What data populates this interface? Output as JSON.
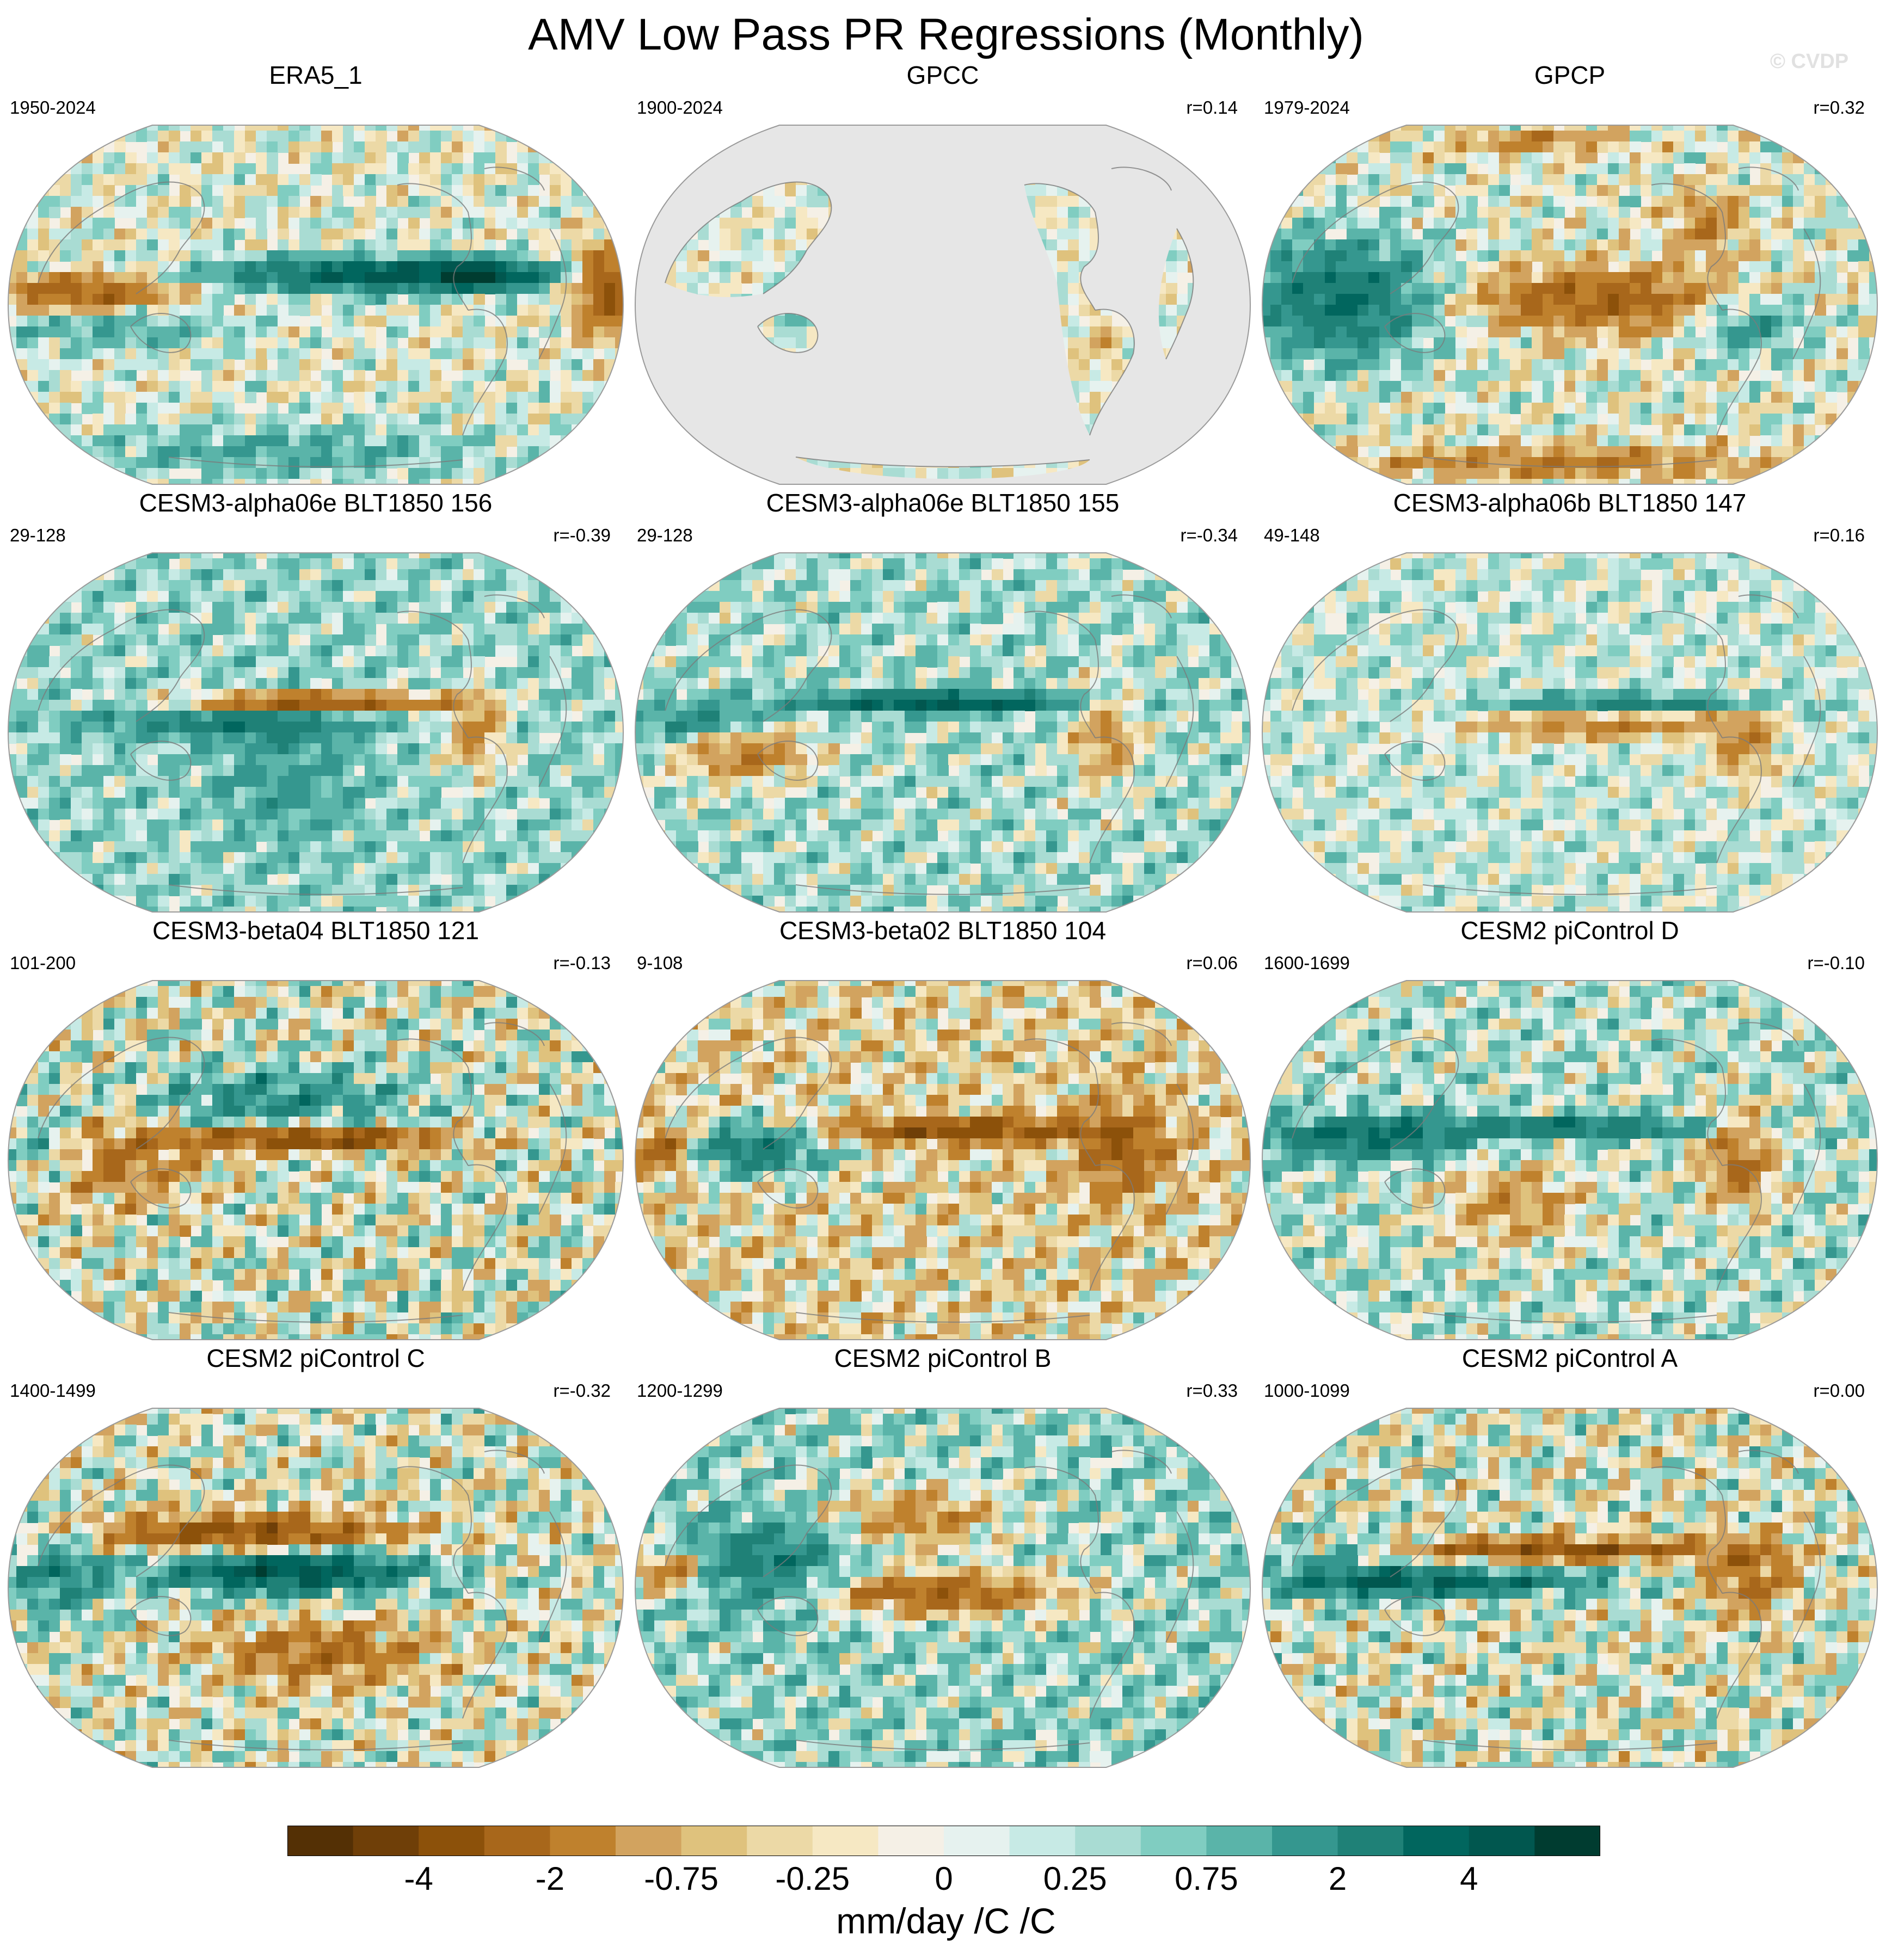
{
  "figure": {
    "title": "AMV Low Pass PR Regressions (Monthly)",
    "watermark": "© CVDP"
  },
  "chart_data": {
    "type": "heatmap",
    "projection": "Robinson (Pacific-centered)",
    "layout": "4 rows x 3 columns",
    "panels": [
      {
        "title": "ERA5_1",
        "period": "1950-2024",
        "corr": "",
        "pattern": "era5",
        "masked": false
      },
      {
        "title": "GPCC",
        "period": "1900-2024",
        "corr": "r=0.14",
        "pattern": "gpcc",
        "masked": true
      },
      {
        "title": "GPCP",
        "period": "1979-2024",
        "corr": "r=0.32",
        "pattern": "gpcp",
        "masked": false
      },
      {
        "title": "CESM3-alpha06e BLT1850 156",
        "period": "29-128",
        "corr": "r=-0.39",
        "pattern": "dryline",
        "masked": false
      },
      {
        "title": "CESM3-alpha06e BLT1850 155",
        "period": "29-128",
        "corr": "r=-0.34",
        "pattern": "wetline",
        "masked": false
      },
      {
        "title": "CESM3-alpha06b BLT1850 147",
        "period": "49-148",
        "corr": "r=0.16",
        "pattern": "weak",
        "masked": false
      },
      {
        "title": "CESM3-beta04 BLT1850 121",
        "period": "101-200",
        "corr": "r=-0.13",
        "pattern": "drystrong",
        "masked": false
      },
      {
        "title": "CESM3-beta02 BLT1850 104",
        "period": "9-108",
        "corr": "r=0.06",
        "pattern": "mixed",
        "masked": false
      },
      {
        "title": "CESM2 piControl D",
        "period": "1600-1699",
        "corr": "r=-0.10",
        "pattern": "wetbelt",
        "masked": false
      },
      {
        "title": "CESM2 piControl C",
        "period": "1400-1499",
        "corr": "r=-0.32",
        "pattern": "wetstrong",
        "masked": false
      },
      {
        "title": "CESM2 piControl B",
        "period": "1200-1299",
        "corr": "r=0.33",
        "pattern": "drysouth",
        "masked": false
      },
      {
        "title": "CESM2 piControl A",
        "period": "1000-1099",
        "corr": "r=0.00",
        "pattern": "contrast",
        "masked": false
      }
    ],
    "colorbar": {
      "label": "mm/day /C /C",
      "tick_labels": [
        "-4",
        "-2",
        "-0.75",
        "-0.25",
        "0",
        "0.25",
        "0.75",
        "2",
        "4"
      ],
      "colors": [
        "#543005",
        "#6f3f08",
        "#8c510a",
        "#a8671b",
        "#bf812d",
        "#d2a35f",
        "#dfc27d",
        "#ecd9a6",
        "#f6e8c3",
        "#f5f0e6",
        "#e6f2ef",
        "#c7eae5",
        "#a9dcd3",
        "#80cdc1",
        "#5ab4a9",
        "#35978f",
        "#1f8177",
        "#01665e",
        "#01574f",
        "#003c30"
      ]
    },
    "land_mask_color": "#e6e6e6",
    "coast_color": "#7a7a7a"
  }
}
